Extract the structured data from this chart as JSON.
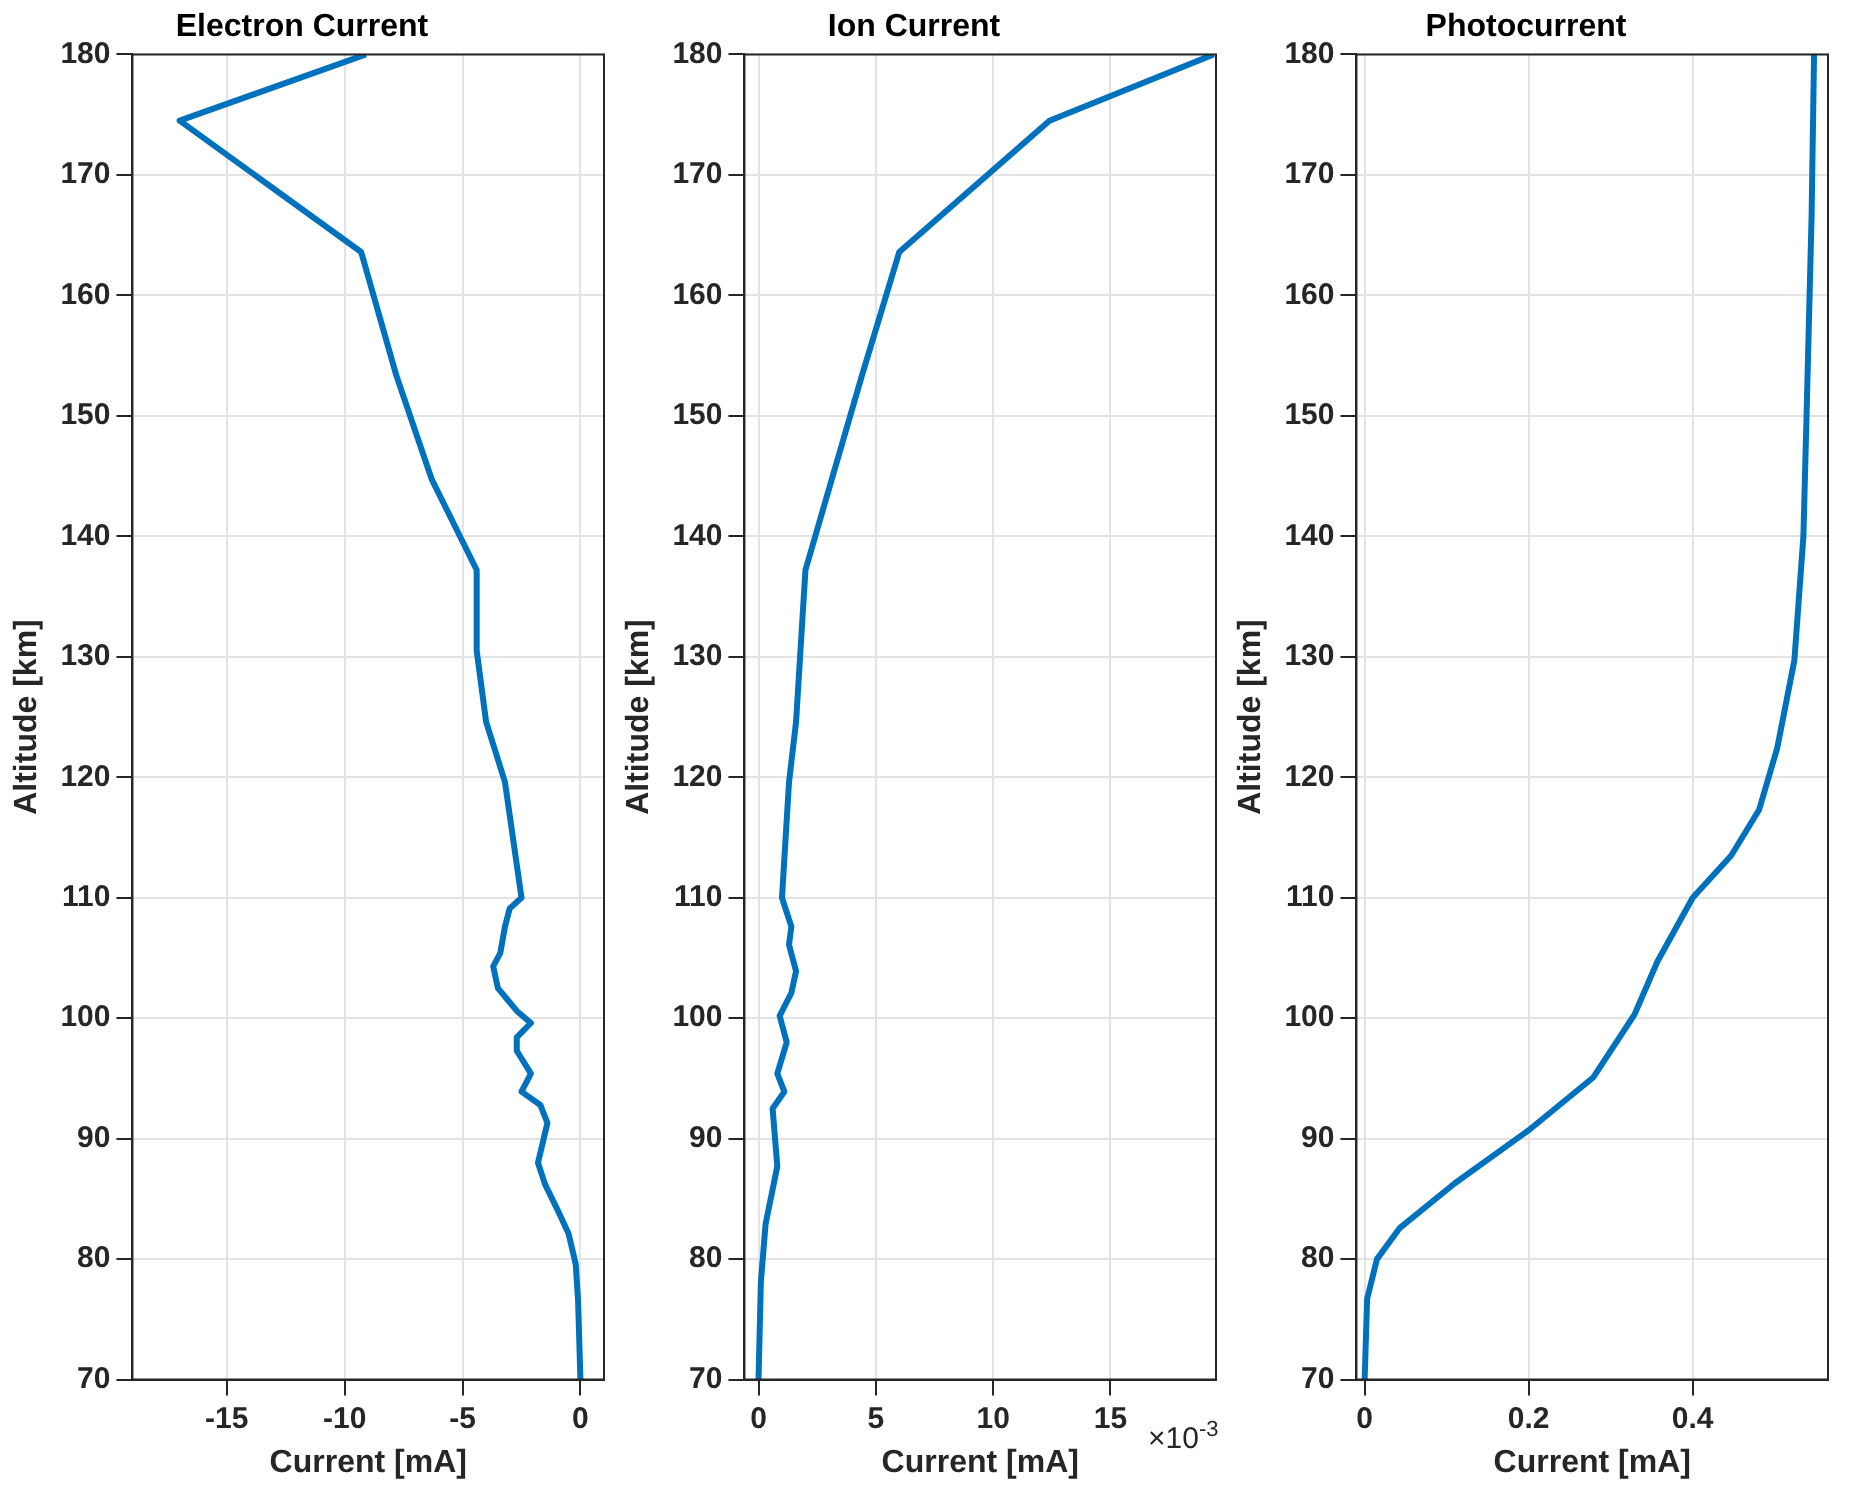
{
  "chart_data": [
    {
      "type": "line",
      "title": "Electron Current",
      "xlabel": "Current [mA]",
      "ylabel": "Altitude [km]",
      "color": "#0072bd",
      "marker": "none",
      "grid": true,
      "x": [
        -9.1,
        -17.0,
        -9.3,
        -7.8,
        -6.3,
        -4.4,
        -4.4,
        -4.0,
        -3.2,
        -2.5,
        -3.0,
        -3.2,
        -3.4,
        -3.7,
        -3.5,
        -2.7,
        -2.1,
        -2.7,
        -2.7,
        -2.1,
        -2.5,
        -1.7,
        -1.4,
        -1.8,
        -1.5,
        -0.95,
        -0.5,
        -0.2,
        -0.1,
        0
      ],
      "values": [
        180,
        174.5,
        163.6,
        153.3,
        144.7,
        137.2,
        130.5,
        124.6,
        119.6,
        110,
        109.1,
        107.6,
        105.4,
        104.3,
        102.5,
        100.6,
        99.6,
        98.4,
        97.3,
        95.4,
        93.9,
        92.8,
        91.3,
        88,
        86.2,
        84,
        82.1,
        79.6,
        76.6,
        70
      ],
      "xlim": [
        -19,
        1
      ],
      "xticks": [
        -15,
        -10,
        -5,
        0
      ],
      "ylim": [
        70,
        180
      ],
      "yticks": [
        70,
        80,
        90,
        100,
        110,
        120,
        130,
        140,
        150,
        160,
        170,
        180
      ]
    },
    {
      "type": "line",
      "title": "Ion Current",
      "xlabel": "Current [mA]",
      "ylabel": "Altitude [km]",
      "color": "#0072bd",
      "marker": "none",
      "grid": true,
      "annotations": [
        "×10$^{-3}$"
      ],
      "x": [
        19.4,
        12.4,
        6.0,
        4.4,
        2.0,
        1.6,
        1.3,
        1.0,
        1.4,
        1.3,
        1.6,
        1.4,
        0.9,
        1.2,
        0.8,
        1.1,
        0.6,
        0.8,
        0.3,
        0.1,
        0
      ],
      "values": [
        180,
        174.5,
        163.6,
        153.3,
        137.2,
        124.6,
        119.6,
        110,
        107.6,
        106.1,
        103.9,
        102.1,
        100.2,
        98,
        95.4,
        93.9,
        92.5,
        87.7,
        82.9,
        78.1,
        70
      ],
      "xlim": [
        -0.6,
        19.5
      ],
      "xticks": [
        0,
        5,
        10,
        15
      ],
      "ylim": [
        70,
        180
      ],
      "yticks": [
        70,
        80,
        90,
        100,
        110,
        120,
        130,
        140,
        150,
        160,
        170,
        180
      ]
    },
    {
      "type": "line",
      "title": "Photocurrent",
      "xlabel": "Current [mA]",
      "ylabel": "Altitude [km]",
      "color": "#0072bd",
      "marker": "none",
      "grid": true,
      "x": [
        0.548,
        0.545,
        0.539,
        0.535,
        0.524,
        0.503,
        0.481,
        0.447,
        0.4,
        0.357,
        0.329,
        0.279,
        0.2,
        0.11,
        0.043,
        0.015,
        0.003,
        0
      ],
      "values": [
        180,
        166.6,
        150.4,
        140,
        129.7,
        122.4,
        117.3,
        113.5,
        110,
        104.7,
        100.3,
        95.1,
        90.7,
        86.3,
        82.6,
        80,
        76.7,
        70
      ],
      "xlim": [
        -0.01,
        0.565
      ],
      "xticks": [
        0,
        0.2,
        0.4
      ],
      "ylim": [
        70,
        180
      ],
      "yticks": [
        70,
        80,
        90,
        100,
        110,
        120,
        130,
        140,
        150,
        160,
        170,
        180
      ]
    }
  ]
}
